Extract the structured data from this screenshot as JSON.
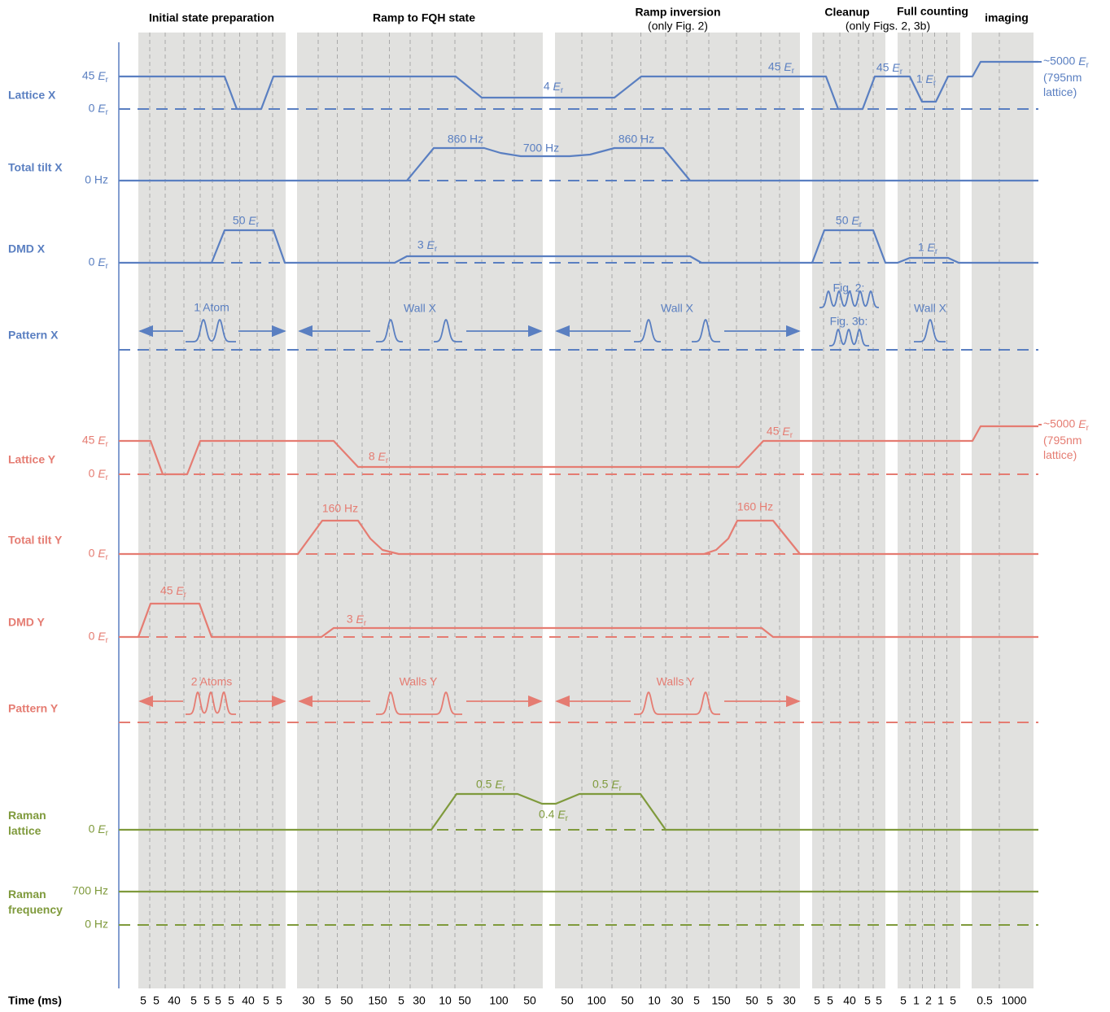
{
  "phases": [
    {
      "title": "Initial state preparation"
    },
    {
      "title": "Ramp to FQH state"
    },
    {
      "title": "Ramp inversion",
      "subtitle": "(only Fig. 2)"
    },
    {
      "title": "Cleanup",
      "subtitle": "(only Figs. 2, 3b)"
    },
    {
      "title": "Full counting"
    },
    {
      "title": "imaging"
    }
  ],
  "rows": [
    {
      "label": "Lattice X",
      "color": "#5a7fc1",
      "levels": [
        "45 Er",
        "0 Er"
      ],
      "annotations": [
        "4 Er",
        "45 Er",
        "45 Er",
        "1 Er"
      ],
      "note": [
        "~5000 Er",
        "(795nm lattice)"
      ]
    },
    {
      "label": "Total tilt X",
      "color": "#5a7fc1",
      "levels": [
        "0 Hz"
      ],
      "annotations": [
        "860 Hz",
        "700 Hz",
        "860 Hz"
      ]
    },
    {
      "label": "DMD X",
      "color": "#5a7fc1",
      "levels": [
        "0 Er"
      ],
      "annotations": [
        "50 Er",
        "3 Er",
        "50 Er",
        "1 Er"
      ]
    },
    {
      "label": "Pattern X",
      "color": "#5a7fc1",
      "levels": [],
      "annotations": [
        "1 Atom",
        "Wall X",
        "Wall X",
        "Fig. 2:",
        "Fig. 3b:",
        "Wall X"
      ]
    },
    {
      "label": "Lattice Y",
      "color": "#e57c72",
      "levels": [
        "45 Er",
        "0 Er"
      ],
      "annotations": [
        "8 Er",
        "45 Er"
      ],
      "note": [
        "~5000 Er",
        "(795nm lattice)"
      ]
    },
    {
      "label": "Total tilt Y",
      "color": "#e57c72",
      "levels": [
        "0 Er"
      ],
      "annotations": [
        "160 Hz",
        "160 Hz"
      ]
    },
    {
      "label": "DMD Y",
      "color": "#e57c72",
      "levels": [
        "0 Er"
      ],
      "annotations": [
        "45 Er",
        "3 Er"
      ]
    },
    {
      "label": "Pattern Y",
      "color": "#e57c72",
      "levels": [],
      "annotations": [
        "2 Atoms",
        "Walls Y",
        "Walls Y"
      ]
    },
    {
      "label": "Raman lattice",
      "color": "#7f9a3c",
      "levels": [
        "0 Er"
      ],
      "annotations": [
        "0.5 Er",
        "0.4 Er",
        "0.5 Er"
      ]
    },
    {
      "label": "Raman frequency",
      "color": "#7f9a3c",
      "levels": [
        "700 Hz",
        "0 Hz"
      ],
      "annotations": []
    }
  ],
  "time_axis": {
    "label": "Time (ms)",
    "durations": [
      [
        5,
        5,
        40,
        5,
        5,
        5,
        5,
        40,
        5,
        5
      ],
      [
        30,
        5,
        50,
        150,
        5,
        30,
        10,
        50,
        100,
        50
      ],
      [
        50,
        100,
        50,
        10,
        30,
        5,
        150,
        50,
        5,
        30
      ],
      [
        5,
        5,
        40,
        5,
        5
      ],
      [
        5,
        1,
        2,
        1,
        5
      ],
      [
        0.5,
        1000
      ]
    ]
  }
}
